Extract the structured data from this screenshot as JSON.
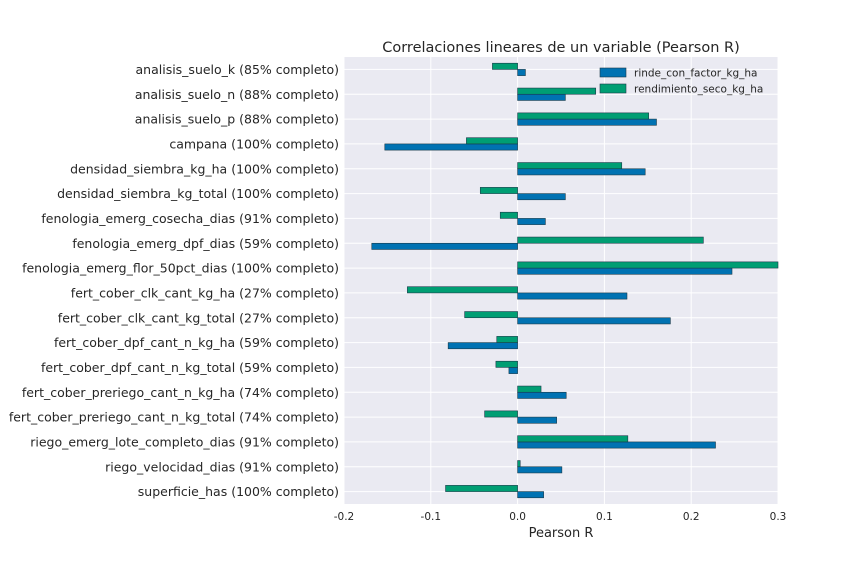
{
  "chart_data": {
    "type": "bar",
    "orientation": "horizontal",
    "title": "Correlaciones lineares de un variable (Pearson R)",
    "xlabel": "Pearson R",
    "ylabel": "",
    "xlim": [
      -0.2,
      0.3
    ],
    "xticks": [
      "-0.2",
      "-0.1",
      "0.0",
      "0.1",
      "0.2",
      "0.3"
    ],
    "grid": true,
    "legend_position": "top-right",
    "categories": [
      "analisis_suelo_k (85% completo)",
      "analisis_suelo_n (88% completo)",
      "analisis_suelo_p (88% completo)",
      "campana (100% completo)",
      "densidad_siembra_kg_ha (100% completo)",
      "densidad_siembra_kg_total (100% completo)",
      "fenologia_emerg_cosecha_dias (91% completo)",
      "fenologia_emerg_dpf_dias (59% completo)",
      "fenologia_emerg_flor_50pct_dias (100% completo)",
      "fert_cober_clk_cant_kg_ha (27% completo)",
      "fert_cober_clk_cant_kg_total (27% completo)",
      "fert_cober_dpf_cant_n_kg_ha (59% completo)",
      "fert_cober_dpf_cant_n_kg_total (59% completo)",
      "fert_cober_preriego_cant_n_kg_ha (74% completo)",
      "fert_cober_preriego_cant_n_kg_total (74% completo)",
      "riego_emerg_lote_completo_dias (91% completo)",
      "riego_velocidad_dias (91% completo)",
      "superficie_has (100% completo)"
    ],
    "series": [
      {
        "name": "rinde_con_factor_kg_ha",
        "color": "#0072b2",
        "values": [
          0.009,
          0.055,
          0.16,
          -0.153,
          0.147,
          0.055,
          0.032,
          -0.168,
          0.247,
          0.126,
          0.176,
          -0.08,
          -0.01,
          0.056,
          0.045,
          0.228,
          0.051,
          0.03
        ]
      },
      {
        "name": "rendimiento_seco_kg_ha",
        "color": "#009e73",
        "values": [
          -0.029,
          0.09,
          0.151,
          -0.059,
          0.12,
          -0.043,
          -0.02,
          0.214,
          0.3,
          -0.127,
          -0.061,
          -0.024,
          -0.025,
          0.027,
          -0.038,
          0.127,
          0.003,
          -0.083
        ]
      }
    ]
  }
}
